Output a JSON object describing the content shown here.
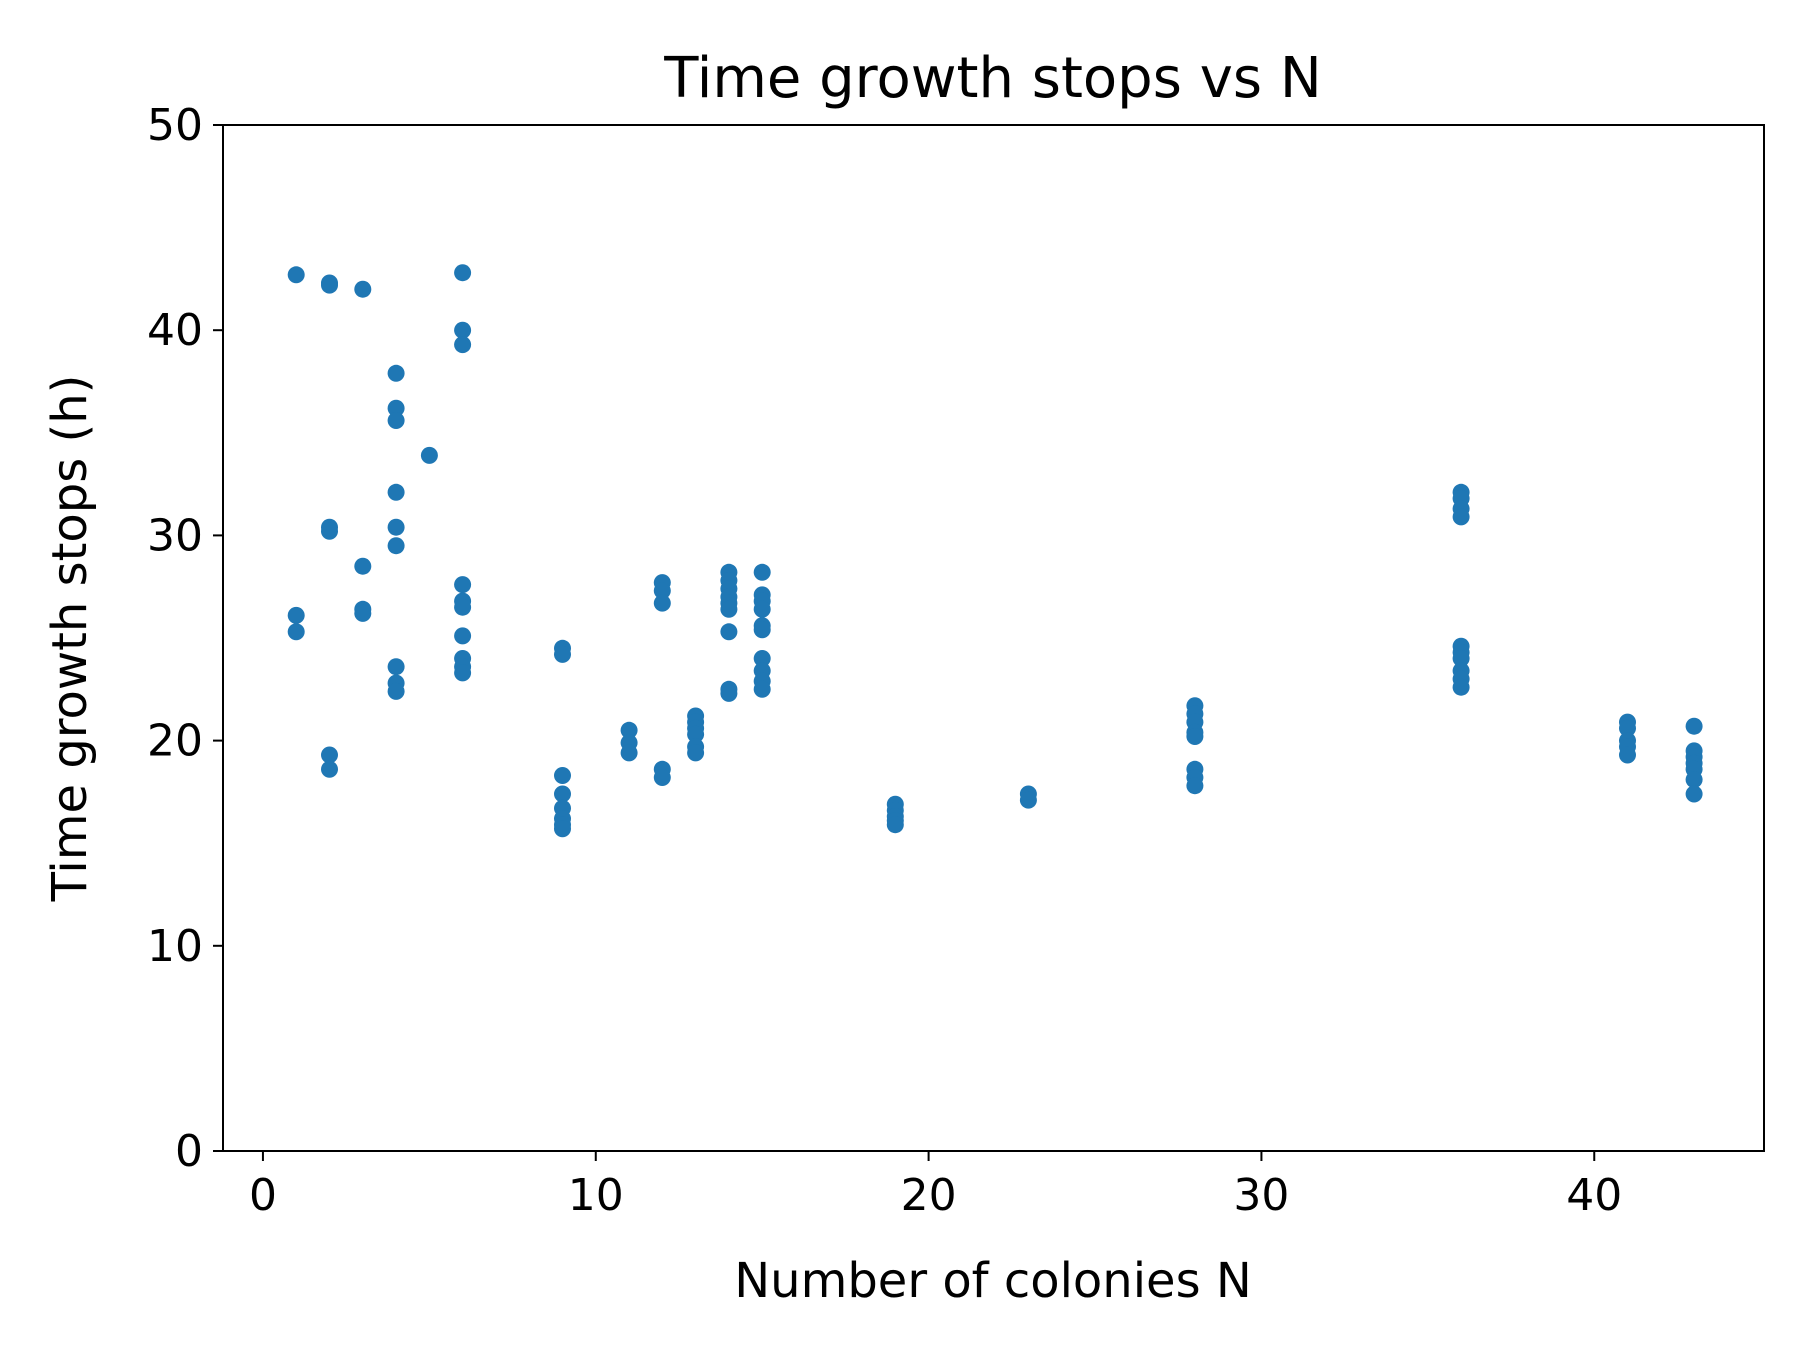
{
  "chart_data": {
    "type": "scatter",
    "title": "Time growth stops vs N",
    "xlabel": "Number of colonies N",
    "ylabel": "Time growth stops (h)",
    "xlim": [
      -1.2,
      45.1
    ],
    "ylim": [
      0,
      50
    ],
    "xticks": [
      0,
      10,
      20,
      30,
      40
    ],
    "yticks": [
      0,
      10,
      20,
      30,
      40,
      50
    ],
    "grid": false,
    "legend": "none",
    "marker_color": "#1f77b4",
    "points": [
      {
        "x": 1,
        "y": 42.7
      },
      {
        "x": 1,
        "y": 26.1
      },
      {
        "x": 1,
        "y": 25.3
      },
      {
        "x": 2,
        "y": 42.3
      },
      {
        "x": 2,
        "y": 42.2
      },
      {
        "x": 2,
        "y": 30.4
      },
      {
        "x": 2,
        "y": 30.2
      },
      {
        "x": 2,
        "y": 19.3
      },
      {
        "x": 2,
        "y": 18.6
      },
      {
        "x": 3,
        "y": 42.0
      },
      {
        "x": 3,
        "y": 28.5
      },
      {
        "x": 3,
        "y": 26.4
      },
      {
        "x": 3,
        "y": 26.2
      },
      {
        "x": 4,
        "y": 37.9
      },
      {
        "x": 4,
        "y": 36.2
      },
      {
        "x": 4,
        "y": 35.6
      },
      {
        "x": 4,
        "y": 32.1
      },
      {
        "x": 4,
        "y": 30.4
      },
      {
        "x": 4,
        "y": 29.5
      },
      {
        "x": 4,
        "y": 23.6
      },
      {
        "x": 4,
        "y": 22.8
      },
      {
        "x": 4,
        "y": 22.4
      },
      {
        "x": 5,
        "y": 33.9
      },
      {
        "x": 6,
        "y": 42.8
      },
      {
        "x": 6,
        "y": 40.0
      },
      {
        "x": 6,
        "y": 39.3
      },
      {
        "x": 6,
        "y": 27.6
      },
      {
        "x": 6,
        "y": 26.8
      },
      {
        "x": 6,
        "y": 26.5
      },
      {
        "x": 6,
        "y": 25.1
      },
      {
        "x": 6,
        "y": 24.0
      },
      {
        "x": 6,
        "y": 23.6
      },
      {
        "x": 6,
        "y": 23.3
      },
      {
        "x": 9,
        "y": 24.5
      },
      {
        "x": 9,
        "y": 24.2
      },
      {
        "x": 9,
        "y": 18.3
      },
      {
        "x": 9,
        "y": 17.4
      },
      {
        "x": 9,
        "y": 16.7
      },
      {
        "x": 9,
        "y": 16.2
      },
      {
        "x": 9,
        "y": 15.9
      },
      {
        "x": 9,
        "y": 15.7
      },
      {
        "x": 11,
        "y": 20.5
      },
      {
        "x": 11,
        "y": 19.9
      },
      {
        "x": 11,
        "y": 19.4
      },
      {
        "x": 12,
        "y": 27.7
      },
      {
        "x": 12,
        "y": 27.3
      },
      {
        "x": 12,
        "y": 26.7
      },
      {
        "x": 12,
        "y": 18.6
      },
      {
        "x": 12,
        "y": 18.2
      },
      {
        "x": 13,
        "y": 21.2
      },
      {
        "x": 13,
        "y": 20.9
      },
      {
        "x": 13,
        "y": 20.6
      },
      {
        "x": 13,
        "y": 20.3
      },
      {
        "x": 13,
        "y": 19.7
      },
      {
        "x": 13,
        "y": 19.4
      },
      {
        "x": 14,
        "y": 28.2
      },
      {
        "x": 14,
        "y": 27.8
      },
      {
        "x": 14,
        "y": 27.4
      },
      {
        "x": 14,
        "y": 27.0
      },
      {
        "x": 14,
        "y": 26.7
      },
      {
        "x": 14,
        "y": 26.4
      },
      {
        "x": 14,
        "y": 25.3
      },
      {
        "x": 14,
        "y": 22.5
      },
      {
        "x": 14,
        "y": 22.3
      },
      {
        "x": 15,
        "y": 28.2
      },
      {
        "x": 15,
        "y": 27.1
      },
      {
        "x": 15,
        "y": 26.8
      },
      {
        "x": 15,
        "y": 26.4
      },
      {
        "x": 15,
        "y": 25.6
      },
      {
        "x": 15,
        "y": 25.4
      },
      {
        "x": 15,
        "y": 24.0
      },
      {
        "x": 15,
        "y": 23.4
      },
      {
        "x": 15,
        "y": 22.9
      },
      {
        "x": 15,
        "y": 22.5
      },
      {
        "x": 19,
        "y": 16.9
      },
      {
        "x": 19,
        "y": 16.6
      },
      {
        "x": 19,
        "y": 16.3
      },
      {
        "x": 19,
        "y": 16.1
      },
      {
        "x": 19,
        "y": 15.9
      },
      {
        "x": 23,
        "y": 17.4
      },
      {
        "x": 23,
        "y": 17.1
      },
      {
        "x": 28,
        "y": 21.7
      },
      {
        "x": 28,
        "y": 21.3
      },
      {
        "x": 28,
        "y": 20.9
      },
      {
        "x": 28,
        "y": 20.4
      },
      {
        "x": 28,
        "y": 20.2
      },
      {
        "x": 28,
        "y": 18.6
      },
      {
        "x": 28,
        "y": 18.2
      },
      {
        "x": 28,
        "y": 17.8
      },
      {
        "x": 36,
        "y": 32.1
      },
      {
        "x": 36,
        "y": 31.8
      },
      {
        "x": 36,
        "y": 31.3
      },
      {
        "x": 36,
        "y": 30.9
      },
      {
        "x": 36,
        "y": 24.6
      },
      {
        "x": 36,
        "y": 24.3
      },
      {
        "x": 36,
        "y": 24.0
      },
      {
        "x": 36,
        "y": 23.4
      },
      {
        "x": 36,
        "y": 23.0
      },
      {
        "x": 36,
        "y": 22.6
      },
      {
        "x": 41,
        "y": 20.9
      },
      {
        "x": 41,
        "y": 20.6
      },
      {
        "x": 41,
        "y": 20.0
      },
      {
        "x": 41,
        "y": 19.7
      },
      {
        "x": 41,
        "y": 19.3
      },
      {
        "x": 43,
        "y": 20.7
      },
      {
        "x": 43,
        "y": 19.5
      },
      {
        "x": 43,
        "y": 19.2
      },
      {
        "x": 43,
        "y": 18.9
      },
      {
        "x": 43,
        "y": 18.6
      },
      {
        "x": 43,
        "y": 18.1
      },
      {
        "x": 43,
        "y": 17.4
      }
    ]
  }
}
